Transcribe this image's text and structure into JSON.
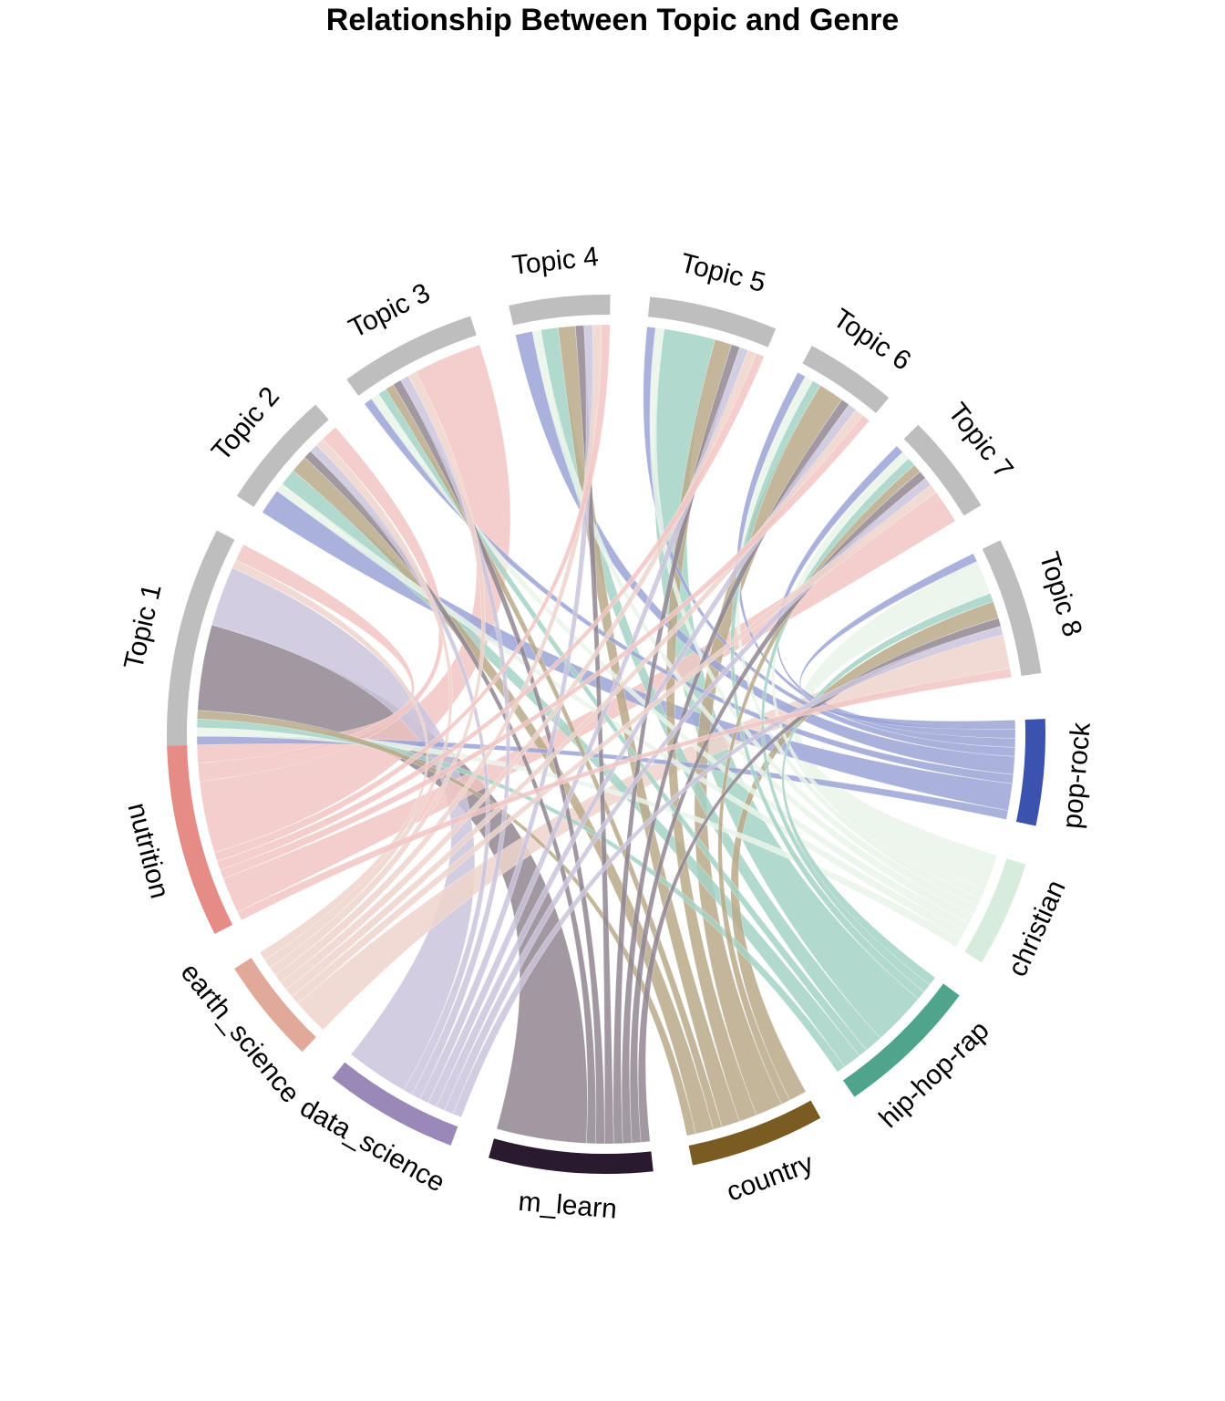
{
  "chart_data": {
    "type": "chord",
    "title": "Relationship Between Topic and Genre",
    "topics": [
      {
        "name": "Topic 1",
        "color": "#bebebe"
      },
      {
        "name": "Topic 2",
        "color": "#bebebe"
      },
      {
        "name": "Topic 3",
        "color": "#bebebe"
      },
      {
        "name": "Topic 4",
        "color": "#bebebe"
      },
      {
        "name": "Topic 5",
        "color": "#bebebe"
      },
      {
        "name": "Topic 6",
        "color": "#bebebe"
      },
      {
        "name": "Topic 7",
        "color": "#bebebe"
      },
      {
        "name": "Topic 8",
        "color": "#bebebe"
      }
    ],
    "genres": [
      {
        "name": "pop-rock",
        "color": "#3c53ad",
        "ribbon": "#9ba5d6"
      },
      {
        "name": "christian",
        "color": "#d8ecdc",
        "ribbon": "#e9f5ea"
      },
      {
        "name": "hip-hop-rap",
        "color": "#4fa58c",
        "ribbon": "#a5d2c4"
      },
      {
        "name": "country",
        "color": "#7a5c22",
        "ribbon": "#b8a98a"
      },
      {
        "name": "m_learn",
        "color": "#2a1a30",
        "ribbon": "#918692"
      },
      {
        "name": "data_science",
        "color": "#9a88b8",
        "ribbon": "#cbc4dc"
      },
      {
        "name": "earth_science",
        "color": "#e1a99a",
        "ribbon": "#efd4cc"
      },
      {
        "name": "nutrition",
        "color": "#e68c86",
        "ribbon": "#f1c6c3"
      }
    ],
    "matrix_rows_topics_cols_genres": [
      [
        1,
        1,
        1,
        1,
        10,
        7,
        1,
        2
      ],
      [
        3,
        1,
        2,
        2,
        1,
        1,
        1,
        2
      ],
      [
        1,
        1,
        1,
        1,
        1,
        1,
        1,
        8
      ],
      [
        2,
        1,
        2,
        2,
        1,
        1,
        1,
        1
      ],
      [
        1,
        1,
        6,
        2,
        1,
        1,
        1,
        1
      ],
      [
        1,
        1,
        1,
        3,
        1,
        1,
        1,
        1
      ],
      [
        1,
        1,
        1,
        1,
        1,
        1,
        1,
        4
      ],
      [
        1,
        4,
        1,
        2,
        1,
        1,
        4,
        1
      ]
    ]
  }
}
